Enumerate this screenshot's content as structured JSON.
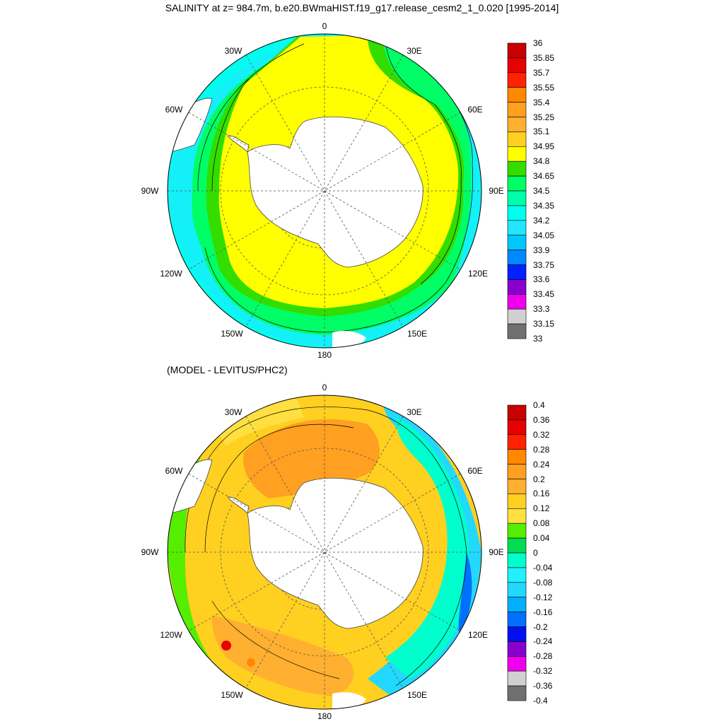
{
  "title": "SALINITY at z= 984.7m, b.e20.BWmaHIST.f19_g17.release_cesm2_1_0.020 [1995-2014]",
  "lower_title": "(MODEL - LEVITUS/PHC2)",
  "longitude_labels": [
    "0",
    "30E",
    "60E",
    "90E",
    "120E",
    "150E",
    "180",
    "150W",
    "120W",
    "90W",
    "60W",
    "30W"
  ],
  "panels": [
    {
      "name": "salinity",
      "colorbar": {
        "labels": [
          "36",
          "35.85",
          "35.7",
          "35.55",
          "35.4",
          "35.25",
          "35.1",
          "34.95",
          "34.8",
          "34.65",
          "34.5",
          "34.35",
          "34.2",
          "34.05",
          "33.9",
          "33.75",
          "33.6",
          "33.45",
          "33.3",
          "33.15",
          "33"
        ],
        "colors": [
          "#c80000",
          "#e60000",
          "#ff2200",
          "#ff8800",
          "#ffa020",
          "#ffb030",
          "#ffd020",
          "#ffff00",
          "#33dd00",
          "#00ff66",
          "#00ffaa",
          "#00ffee",
          "#22e6ff",
          "#00c8ff",
          "#0088ff",
          "#0022ff",
          "#8800cc",
          "#ee00ee",
          "#d0d0d0",
          "#707070"
        ]
      }
    },
    {
      "name": "difference",
      "colorbar": {
        "labels": [
          "0.4",
          "0.36",
          "0.32",
          "0.28",
          "0.24",
          "0.2",
          "0.16",
          "0.12",
          "0.08",
          "0.04",
          "0",
          "-0.04",
          "-0.08",
          "-0.12",
          "-0.16",
          "-0.2",
          "-0.24",
          "-0.28",
          "-0.32",
          "-0.36",
          "-0.4"
        ],
        "colors": [
          "#c80000",
          "#e60000",
          "#ff2200",
          "#ff8800",
          "#ffa020",
          "#ffb030",
          "#ffd020",
          "#ffe040",
          "#55ee00",
          "#00dd55",
          "#00ffcc",
          "#22f0ff",
          "#22d8ff",
          "#00b0ff",
          "#0070ff",
          "#0010ee",
          "#8800cc",
          "#ee00ee",
          "#d0d0d0",
          "#707070"
        ]
      }
    }
  ]
}
